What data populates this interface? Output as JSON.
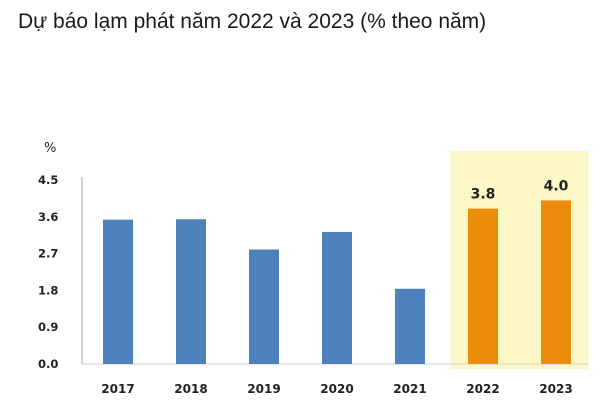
{
  "chart_data": {
    "type": "bar",
    "title": "Dự báo lạm phát năm 2022 và 2023 (% theo năm)",
    "ylabel": "%",
    "xlabel": "",
    "categories": [
      "2017",
      "2018",
      "2019",
      "2020",
      "2021",
      "2022",
      "2023"
    ],
    "values": [
      3.53,
      3.54,
      2.8,
      3.23,
      1.84,
      3.8,
      4.0
    ],
    "data_labels": [
      "",
      "",
      "",
      "",
      "",
      "3.8",
      "4.0"
    ],
    "ylim": [
      0,
      4.5
    ],
    "y_ticks": [
      "0.0",
      "0.9",
      "1.8",
      "2.7",
      "3.6",
      "4.5"
    ],
    "grid": false,
    "colors": {
      "actual": "#4f81bd",
      "forecast": "#ed8c0a",
      "forecast_highlight": "#fdf7c6"
    },
    "forecast_from_index": 5
  }
}
